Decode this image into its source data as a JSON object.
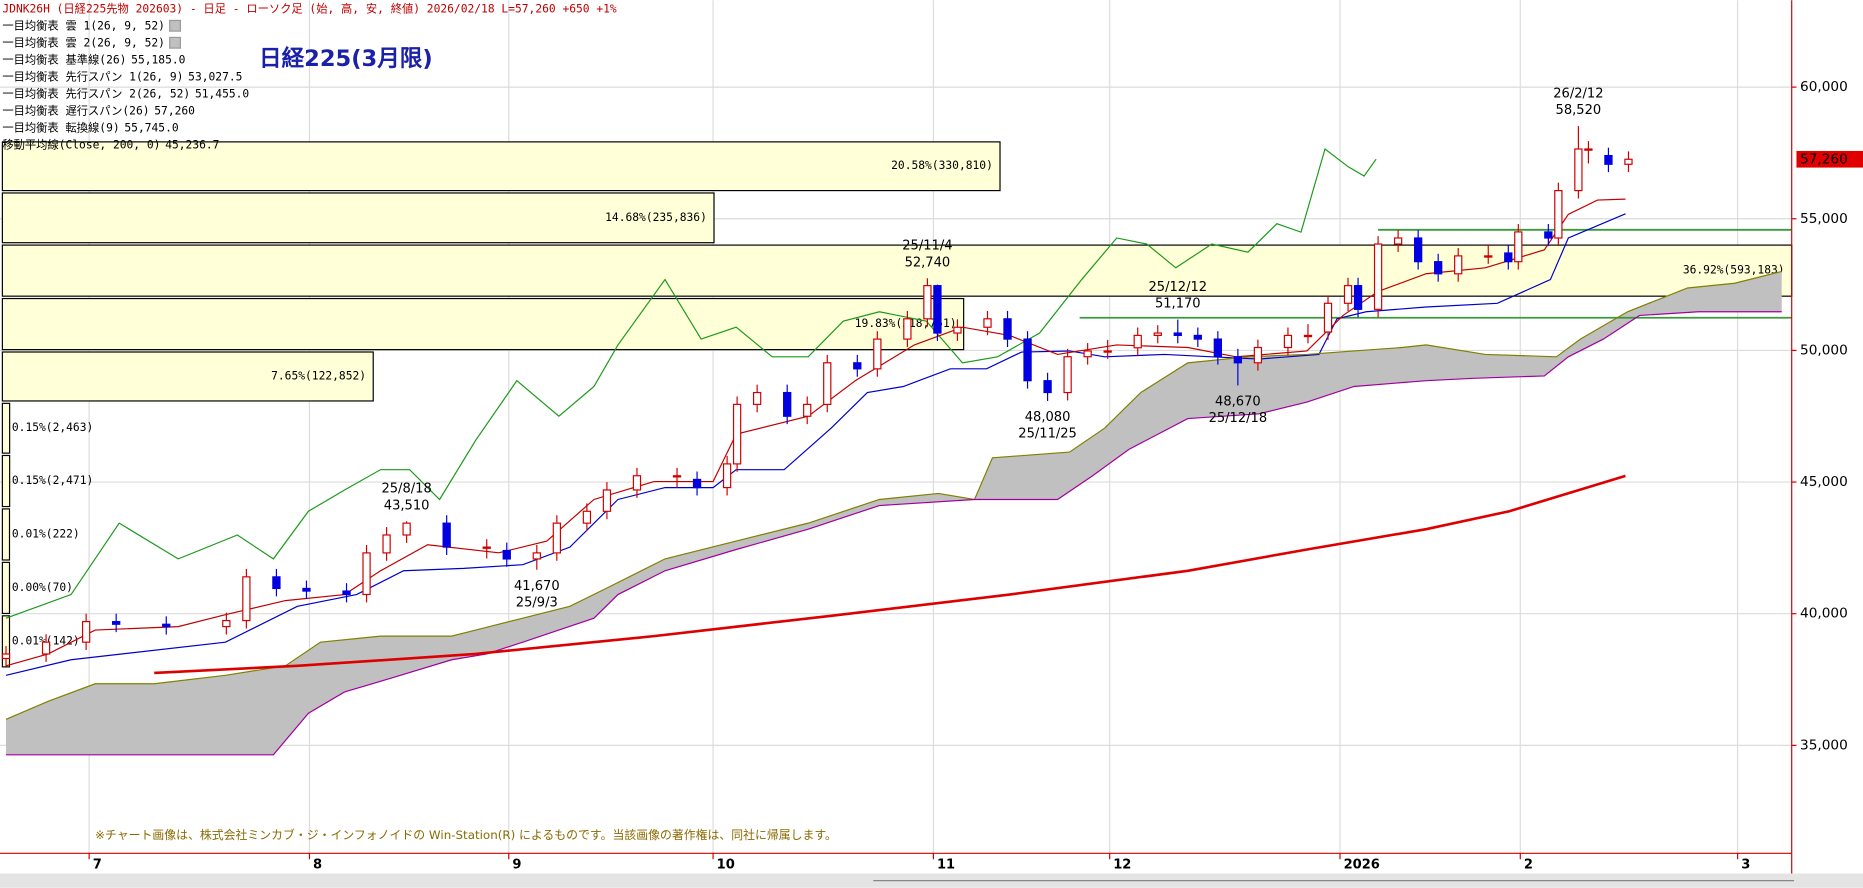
{
  "chart_data": {
    "type": "candlestick",
    "header": "JDNK26H (日経225先物 202603) - 日足 - ローソク足 (始, 高, 安, 終値)  2026/02/18 L=57,260 +650  +1%",
    "title": "日経225(3月限)",
    "note": "※チャート画像は、株式会社ミンカブ・ジ・インフォノイドの Win-Station(R) によるものです。当該画像の著作権は、同社に帰属します。",
    "clouds": [
      {
        "name": "一目均衡表 雲 1(26, 9, 52)",
        "color": "#c0c0c0"
      },
      {
        "name": "一目均衡表 雲 2(26, 9, 52)",
        "color": "#c0c0c0"
      }
    ],
    "xlim": [
      -0.6,
      178.3
    ],
    "ylim": [
      30900,
      63300
    ],
    "xticks": [
      {
        "value": 8.3,
        "label": "7"
      },
      {
        "value": 30.3,
        "label": "8"
      },
      {
        "value": 50.2,
        "label": "9"
      },
      {
        "value": 70.6,
        "label": "10"
      },
      {
        "value": 92.6,
        "label": "11"
      },
      {
        "value": 110.2,
        "label": "12"
      },
      {
        "value": 133.2,
        "label": "2026"
      },
      {
        "value": 151.2,
        "label": "2"
      },
      {
        "value": 172.9,
        "label": "3"
      }
    ],
    "yticks": [
      {
        "value": 35000,
        "label": "35,000"
      },
      {
        "value": 40000,
        "label": "40,000"
      },
      {
        "value": 45000,
        "label": "45,000"
      },
      {
        "value": 50000,
        "label": "50,000"
      },
      {
        "value": 55000,
        "label": "55,000"
      },
      {
        "value": 60000,
        "label": "60,000"
      }
    ],
    "grid": true,
    "up_color": "#d00000",
    "down_color": "#0000e0",
    "candles": {
      "x": [
        0,
        4,
        8,
        11,
        16,
        22,
        24,
        27,
        30,
        34,
        36,
        38,
        40,
        44,
        48,
        50,
        53,
        55,
        58,
        60,
        63,
        67,
        69,
        72,
        73,
        75,
        78,
        80,
        82,
        85,
        87,
        90,
        92,
        93,
        95,
        98,
        100,
        102,
        104,
        106,
        108,
        110,
        113,
        115,
        117,
        119,
        121,
        123,
        125,
        128,
        130,
        132,
        134,
        135,
        137,
        139,
        141,
        143,
        145,
        148,
        150,
        151,
        154,
        155,
        157,
        158,
        160,
        162
      ],
      "open": [
        38300,
        38470,
        38920,
        39700,
        39600,
        39510,
        39740,
        41400,
        40960,
        40860,
        40730,
        42310,
        42990,
        43440,
        42530,
        42400,
        42080,
        42310,
        43440,
        43890,
        44700,
        45240,
        45100,
        44790,
        45690,
        47950,
        48400,
        47500,
        47950,
        49530,
        49300,
        50430,
        51200,
        52460,
        50660,
        50880,
        51200,
        50430,
        48850,
        48400,
        49760,
        49980,
        50100,
        50570,
        50660,
        50570,
        50430,
        49760,
        49530,
        50110,
        50570,
        50700,
        51790,
        52460,
        51560,
        54040,
        54270,
        53370,
        52910,
        53590,
        53700,
        53370,
        54500,
        54270,
        56070,
        57650,
        57400,
        57070
      ],
      "high": [
        38770,
        39220,
        40000,
        40000,
        39900,
        40040,
        41700,
        41700,
        41260,
        41160,
        42610,
        43290,
        43510,
        43740,
        42830,
        42700,
        42610,
        43740,
        44190,
        45000,
        45540,
        45540,
        45400,
        45990,
        48250,
        48700,
        48700,
        48250,
        49830,
        49830,
        50730,
        51500,
        52740,
        52500,
        51180,
        51500,
        51500,
        50730,
        49150,
        50060,
        50280,
        50400,
        50870,
        50960,
        51170,
        50870,
        50730,
        50060,
        50410,
        50870,
        51000,
        52090,
        52760,
        52760,
        54340,
        54570,
        54570,
        53670,
        53890,
        54000,
        54000,
        54800,
        54800,
        56370,
        58520,
        57950,
        57700,
        57560
      ],
      "low": [
        38000,
        38170,
        38620,
        39300,
        39210,
        39210,
        39440,
        40660,
        40560,
        40430,
        40430,
        42010,
        42690,
        42230,
        42100,
        41780,
        41670,
        42010,
        43140,
        43590,
        44400,
        44800,
        44490,
        44490,
        45390,
        47650,
        47200,
        47200,
        47650,
        49000,
        49000,
        50130,
        50900,
        50360,
        50360,
        50580,
        50130,
        48550,
        48080,
        48100,
        49460,
        49680,
        49800,
        50270,
        50270,
        50130,
        49460,
        48670,
        49230,
        49810,
        50270,
        50400,
        51490,
        51260,
        51260,
        53740,
        53070,
        52610,
        52610,
        53290,
        53070,
        53070,
        53970,
        53970,
        55770,
        57100,
        56770,
        56770
      ],
      "close": [
        38470,
        38920,
        39700,
        39600,
        39510,
        39740,
        41400,
        40960,
        40860,
        40730,
        42310,
        42990,
        43440,
        42530,
        42530,
        42080,
        42310,
        43440,
        43890,
        44700,
        45240,
        45240,
        44790,
        45690,
        47950,
        48400,
        47500,
        47950,
        49530,
        49300,
        50430,
        51200,
        52460,
        50660,
        50880,
        51200,
        50430,
        48850,
        48400,
        49760,
        49980,
        49980,
        50570,
        50660,
        50570,
        50430,
        49760,
        49530,
        50110,
        50570,
        50570,
        51790,
        52460,
        51560,
        54040,
        54270,
        53370,
        52910,
        53590,
        53590,
        53370,
        54500,
        54270,
        56070,
        57650,
        57650,
        57070,
        57260
      ]
    },
    "series": [
      {
        "name": "一目均衡表 基準線(26)",
        "value_label": "55,185.0",
        "color": "#0000cc",
        "x": [
          0,
          6.5,
          21.9,
          29.1,
          35,
          39.7,
          45.7,
          51.6,
          56.3,
          61.1,
          65.8,
          70.6,
          72.9,
          77.7,
          82.4,
          86,
          89.6,
          94.3,
          97.9,
          101.4,
          106.2,
          109.7,
          115.7,
          120.4,
          125.1,
          131.1,
          132.9,
          135.8,
          141.8,
          148.9,
          154.2,
          156,
          161.7
        ],
        "values": [
          37660,
          38250,
          38920,
          40280,
          40730,
          41630,
          41720,
          41860,
          42530,
          44340,
          44790,
          44790,
          45470,
          45470,
          47050,
          48400,
          48630,
          49300,
          49300,
          49940,
          49980,
          49760,
          49850,
          49760,
          49670,
          49850,
          51200,
          51470,
          51650,
          51790,
          52690,
          54270,
          55185
        ]
      },
      {
        "name": "一目均衡表 先行スパン 1(26, 9)",
        "value_label": "53,027.5",
        "color": "#808000",
        "x": [
          0,
          4.2,
          8.9,
          14.8,
          21.9,
          27.9,
          31.4,
          37.4,
          44.5,
          46.9,
          51.6,
          56.3,
          59.9,
          65.8,
          72.9,
          80.1,
          87.2,
          93.1,
          96.7,
          98.5,
          106.2,
          109.7,
          113.3,
          118,
          124,
          129.9,
          134.6,
          139.4,
          141.8,
          147.7,
          154.8,
          157.2,
          161.9,
          167.9,
          172.6,
          177.3
        ],
        "values": [
          35990,
          36670,
          37340,
          37340,
          37660,
          38020,
          38920,
          39150,
          39150,
          39380,
          39830,
          40280,
          40960,
          42080,
          42760,
          43440,
          44340,
          44570,
          44340,
          45920,
          46140,
          47050,
          48400,
          49530,
          49760,
          49850,
          49980,
          50110,
          50210,
          49850,
          49760,
          50430,
          51470,
          52370,
          52550,
          53000
        ]
      },
      {
        "name": "一目均衡表 先行スパン 2(26, 52)",
        "value_label": "51,455.0",
        "color": "#a000a0",
        "x": [
          0,
          26.7,
          30.2,
          33.8,
          38.6,
          44.5,
          48,
          51.6,
          58.7,
          61.1,
          65.8,
          72.9,
          80.1,
          87.2,
          96.7,
          105,
          108.5,
          112.1,
          118,
          125.1,
          129.9,
          134.6,
          141.8,
          146.5,
          153.6,
          156,
          159.5,
          163.1,
          169,
          177.3
        ],
        "values": [
          34640,
          34640,
          36220,
          37030,
          37570,
          38250,
          38470,
          38920,
          39830,
          40730,
          41630,
          42440,
          43210,
          44110,
          44340,
          44340,
          45240,
          46240,
          47410,
          47590,
          48040,
          48630,
          48850,
          48940,
          49030,
          49760,
          50430,
          51330,
          51470,
          51470
        ]
      },
      {
        "name": "一目均衡表 遅行スパン(26)",
        "value_label": "57,260",
        "color": "#1a9a1a",
        "x": [
          0,
          6.5,
          11.3,
          17.2,
          23.1,
          26.7,
          30.2,
          33.8,
          37.4,
          40.3,
          43.3,
          46.9,
          51,
          55.2,
          58.7,
          61.1,
          65.8,
          69.4,
          72.9,
          76.5,
          80.1,
          83.6,
          87.2,
          91.9,
          95.5,
          99,
          103.2,
          107.4,
          110.9,
          113.9,
          116.8,
          120.4,
          124,
          126.9,
          129.3,
          131.7,
          134,
          135.6,
          136.8
        ],
        "values": [
          39830,
          40730,
          43440,
          42080,
          42990,
          42080,
          43890,
          44700,
          45470,
          45470,
          44340,
          46590,
          48850,
          47500,
          48630,
          50210,
          52690,
          50430,
          50880,
          49760,
          49760,
          51110,
          51470,
          51110,
          49530,
          49760,
          50660,
          52690,
          54270,
          54040,
          53140,
          54040,
          53730,
          54810,
          54490,
          57650,
          56980,
          56620,
          57260
        ]
      },
      {
        "name": "一目均衡表 転換線(9)",
        "value_label": "55,745.0",
        "color": "#c00000",
        "x": [
          0,
          4.2,
          8.9,
          17.2,
          21.9,
          27.9,
          33.8,
          37.4,
          42.1,
          49.2,
          54,
          58.7,
          64.7,
          70.6,
          72.9,
          80.1,
          84.8,
          90.7,
          95.5,
          100.2,
          105,
          110.9,
          118,
          122.8,
          129.9,
          133.5,
          137,
          141.8,
          147.7,
          153.6,
          156,
          158.9,
          161.7
        ],
        "values": [
          38020,
          38470,
          39380,
          39510,
          39960,
          40500,
          40730,
          41630,
          42620,
          42310,
          42760,
          44340,
          45020,
          45020,
          46820,
          47500,
          48850,
          50210,
          50880,
          50570,
          49850,
          50210,
          50110,
          49760,
          49980,
          51330,
          52240,
          52910,
          53140,
          53820,
          55170,
          55710,
          55745
        ]
      },
      {
        "name": "移動平均線(Close, 200, 0)",
        "value_label": "45,236.7",
        "color": "#dd0000",
        "x": [
          14.8,
          29.1,
          46.9,
          64.7,
          82.4,
          100.2,
          118,
          129.9,
          141.8,
          150.1,
          161.7
        ],
        "values": [
          37750,
          38020,
          38470,
          39150,
          39920,
          40730,
          41630,
          42440,
          43210,
          43890,
          45236.7
        ]
      }
    ],
    "profile": {
      "color": "#ffffd8",
      "bins": [
        37890,
        39920,
        41950,
        43980,
        46010,
        47990,
        49940,
        51970,
        54000,
        55980,
        57920
      ],
      "values": [
        0.01,
        0.0,
        0.01,
        0.15,
        0.15,
        7.65,
        19.83,
        36.92,
        14.68,
        20.58
      ],
      "value_labels": [
        "0.01%(142)",
        "0.00%(70)",
        "0.01%(222)",
        "0.15%(2,471)",
        "0.15%(2,463)",
        "7.65%(122,852)",
        "19.83%(318,751)",
        "36.92%(593,183)",
        "14.68%(235,836)",
        "20.58%(330,810)"
      ]
    },
    "hlines": [
      {
        "value": 54580,
        "x": 137,
        "color": "#3a9a3a"
      },
      {
        "value": 51240,
        "x": 107.2,
        "color": "#3a9a3a"
      }
    ],
    "annotations": [
      {
        "label": "25/8/18",
        "value": 43510,
        "value_label": "43,510"
      },
      {
        "label": "25/9/3",
        "value": 41670,
        "value_label": "41,670"
      },
      {
        "label": "25/11/4",
        "value": 52740,
        "value_label": "52,740"
      },
      {
        "label": "25/11/25",
        "value": 48080,
        "value_label": "48,080"
      },
      {
        "label": "25/12/12",
        "value": 51170,
        "value_label": "51,170"
      },
      {
        "label": "25/12/18",
        "value": 48670,
        "value_label": "48,670"
      },
      {
        "label": "26/2/12",
        "value": 58520,
        "value_label": "58,520"
      }
    ],
    "last_price": {
      "value": 57260,
      "label": "57,260",
      "color": "#e00000"
    }
  }
}
